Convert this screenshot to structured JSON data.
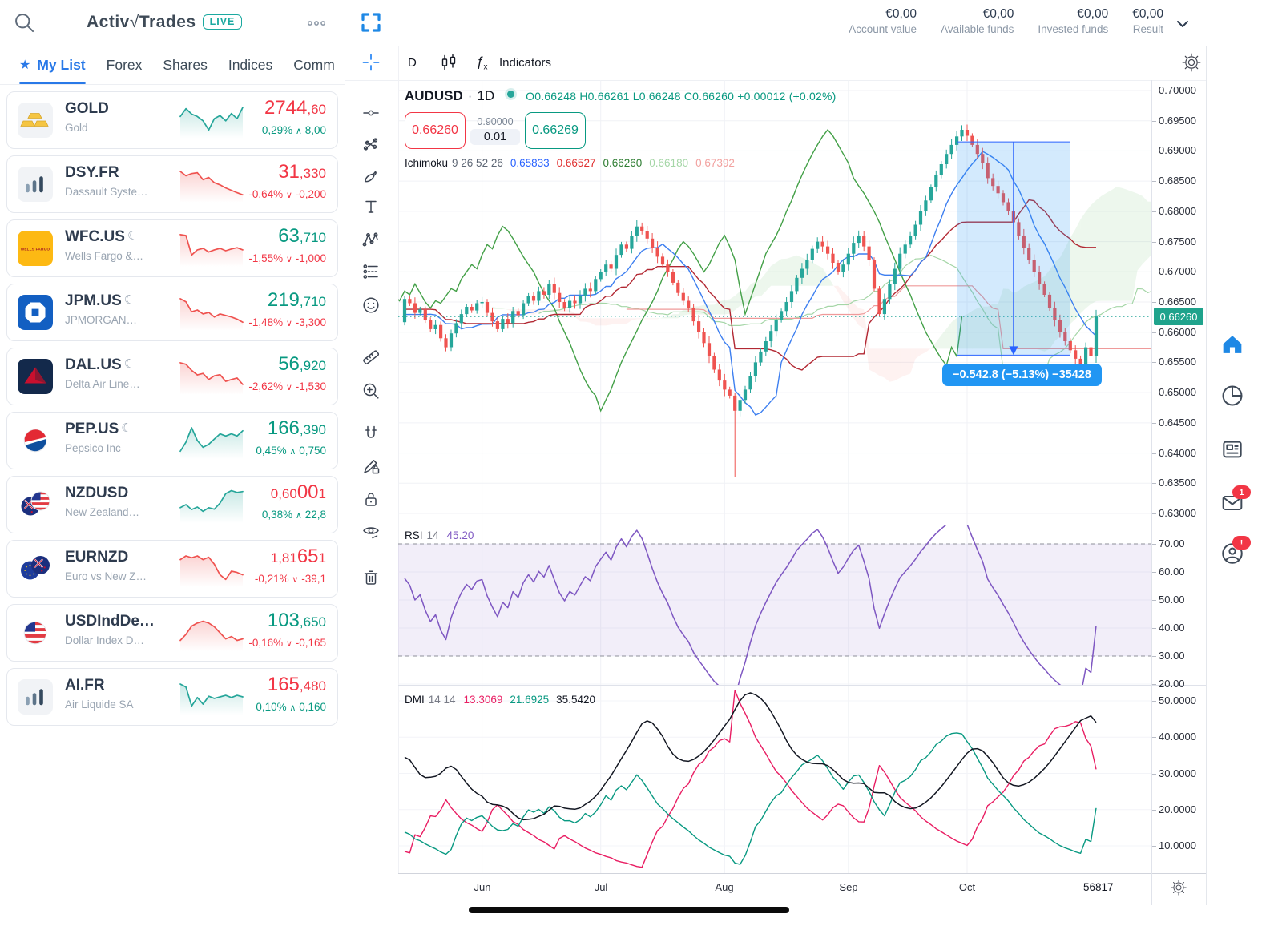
{
  "colors": {
    "up": "#089981",
    "down": "#f23645",
    "candle_up": "#26a69a",
    "candle_down": "#ef5350",
    "accent": "#1e88e5",
    "conversion": "#2962ff",
    "base_line": "#b22833",
    "lagging": "#43a047",
    "lead_a": "#a5d6a7",
    "lead_b": "#ef9a9a",
    "rsi": "#7e57c2",
    "dmi_minus": "#e91e63",
    "dmi_plus": "#089981",
    "dmi_adx": "#131722"
  },
  "watchlist": {
    "logo_activ": "Activ",
    "logo_check": "√",
    "logo_trades": "Trades",
    "live_badge": "LIVE",
    "tabs": [
      {
        "label": "My List",
        "active": true,
        "starred": true
      },
      {
        "label": "Forex"
      },
      {
        "label": "Shares"
      },
      {
        "label": "Indices"
      },
      {
        "label": "Comm"
      }
    ],
    "items": [
      {
        "symbol": "GOLD",
        "name": "Gold",
        "icon": "gold",
        "moon": false,
        "price": [
          [
            "2744",
            "lg"
          ],
          [
            ",60",
            "sm"
          ]
        ],
        "price_dir": "down",
        "change": "0,29%",
        "arrow": "up",
        "delta": "8,00",
        "change_dir": "up",
        "spark_dir": "up",
        "spark": [
          0.38,
          0.12,
          0.3,
          0.38,
          0.52,
          0.82,
          0.45,
          0.35,
          0.52,
          0.28,
          0.45,
          0.08
        ]
      },
      {
        "symbol": "DSY.FR",
        "name": "Dassault Syste…",
        "icon": "bars",
        "moon": false,
        "price": [
          [
            "31",
            "lg"
          ],
          [
            ",330",
            "sm"
          ]
        ],
        "price_dir": "down",
        "change": "-0,64%",
        "arrow": "down",
        "delta": "-0,200",
        "change_dir": "down",
        "spark_dir": "down",
        "spark": [
          0.08,
          0.22,
          0.15,
          0.12,
          0.35,
          0.28,
          0.45,
          0.52,
          0.62,
          0.7,
          0.78,
          0.85
        ]
      },
      {
        "symbol": "WFC.US",
        "name": "Wells Fargo &…",
        "icon": "wfc",
        "moon": true,
        "price": [
          [
            "63",
            "lg"
          ],
          [
            ",710",
            "sm"
          ]
        ],
        "price_dir": "up",
        "change": "-1,55%",
        "arrow": "down",
        "delta": "-1,000",
        "change_dir": "down",
        "spark_dir": "down",
        "spark": [
          0.05,
          0.08,
          0.72,
          0.55,
          0.5,
          0.62,
          0.55,
          0.5,
          0.58,
          0.52,
          0.48,
          0.55
        ]
      },
      {
        "symbol": "JPM.US",
        "name": "JPMORGAN…",
        "icon": "jpm",
        "moon": true,
        "price": [
          [
            "219",
            "lg"
          ],
          [
            ",710",
            "sm"
          ]
        ],
        "price_dir": "up",
        "change": "-1,48%",
        "arrow": "down",
        "delta": "-3,300",
        "change_dir": "down",
        "spark_dir": "down",
        "spark": [
          0.05,
          0.15,
          0.48,
          0.42,
          0.55,
          0.5,
          0.65,
          0.55,
          0.6,
          0.65,
          0.72,
          0.82
        ]
      },
      {
        "symbol": "DAL.US",
        "name": "Delta Air Line…",
        "icon": "dal",
        "moon": true,
        "price": [
          [
            "56",
            "lg"
          ],
          [
            ",920",
            "sm"
          ]
        ],
        "price_dir": "up",
        "change": "-2,62%",
        "arrow": "down",
        "delta": "-1,530",
        "change_dir": "down",
        "spark_dir": "down",
        "spark": [
          0.05,
          0.1,
          0.3,
          0.45,
          0.4,
          0.6,
          0.48,
          0.44,
          0.66,
          0.6,
          0.55,
          0.76
        ]
      },
      {
        "symbol": "PEP.US",
        "name": "Pepsico Inc",
        "icon": "pep",
        "moon": true,
        "price": [
          [
            "166",
            "lg"
          ],
          [
            ",390",
            "sm"
          ]
        ],
        "price_dir": "up",
        "change": "0,45%",
        "arrow": "up",
        "delta": "0,750",
        "change_dir": "up",
        "spark_dir": "up",
        "spark": [
          0.85,
          0.55,
          0.08,
          0.5,
          0.72,
          0.62,
          0.45,
          0.28,
          0.35,
          0.28,
          0.35,
          0.18
        ]
      },
      {
        "symbol": "NZDUSD",
        "name": "New Zealand…",
        "icon": "nzus",
        "moon": false,
        "price": [
          [
            "0,60",
            "sm"
          ],
          [
            "00",
            "lg"
          ],
          [
            "1",
            "sm"
          ]
        ],
        "price_dir": "down",
        "change": "0,38%",
        "arrow": "up",
        "delta": "22,8",
        "change_dir": "up",
        "spark_dir": "up",
        "spark": [
          0.6,
          0.5,
          0.66,
          0.58,
          0.72,
          0.6,
          0.65,
          0.45,
          0.14,
          0.04,
          0.1,
          0.07
        ]
      },
      {
        "symbol": "EURNZD",
        "name": "Euro vs New Z…",
        "icon": "eunz",
        "moon": false,
        "price": [
          [
            "1,81",
            "sm"
          ],
          [
            "65",
            "lg"
          ],
          [
            "1",
            "sm"
          ]
        ],
        "price_dir": "down",
        "change": "-0,21%",
        "arrow": "down",
        "delta": "-39,1",
        "change_dir": "down",
        "spark_dir": "down",
        "spark": [
          0.2,
          0.08,
          0.14,
          0.08,
          0.2,
          0.12,
          0.35,
          0.7,
          0.85,
          0.58,
          0.62,
          0.7
        ]
      },
      {
        "symbol": "USDIndDe…",
        "name": "Dollar Index D…",
        "icon": "us",
        "moon": false,
        "price": [
          [
            "103",
            "lg"
          ],
          [
            ",650",
            "sm"
          ]
        ],
        "price_dir": "up",
        "change": "-0,16%",
        "arrow": "down",
        "delta": "-0,165",
        "change_dir": "down",
        "spark_dir": "down",
        "spark": [
          0.75,
          0.55,
          0.28,
          0.18,
          0.12,
          0.18,
          0.3,
          0.5,
          0.7,
          0.62,
          0.75,
          0.7
        ]
      },
      {
        "symbol": "AI.FR",
        "name": "Air Liquide SA",
        "icon": "bars",
        "moon": false,
        "price": [
          [
            "165",
            "lg"
          ],
          [
            ",480",
            "sm"
          ]
        ],
        "price_dir": "down",
        "change": "0,10%",
        "arrow": "up",
        "delta": "0,160",
        "change_dir": "up",
        "spark_dir": "up",
        "spark": [
          0.08,
          0.18,
          0.8,
          0.52,
          0.74,
          0.48,
          0.55,
          0.5,
          0.45,
          0.52,
          0.45,
          0.5
        ]
      }
    ]
  },
  "topbar": {
    "accounts": [
      {
        "value": "€0,00",
        "label": "Account value"
      },
      {
        "value": "€0,00",
        "label": "Available funds"
      },
      {
        "value": "€0,00",
        "label": "Invested funds"
      },
      {
        "value": "€0,00",
        "label": "Result"
      }
    ]
  },
  "chart_row": {
    "timeframe": "D",
    "indicators": "Indicators"
  },
  "legend": {
    "symbol": "AUDUSD",
    "sep": "·",
    "timeframe": "1D",
    "ohlc_text": "O0.66248  H0.66261  L0.66248  C0.66260  +0.00012 (+0.02%)"
  },
  "trade": {
    "sell": "0.66260",
    "amount": "0.90000",
    "qty": "0.01",
    "buy": "0.66269"
  },
  "ichimoku_legend": {
    "title": "Ichimoku",
    "params": "9 26 52 26",
    "values": [
      {
        "v": "0.65833",
        "color": "#2962ff"
      },
      {
        "v": "0.66527",
        "color": "#e03131"
      },
      {
        "v": "0.66260",
        "color": "#2e7d32"
      },
      {
        "v": "0.66180",
        "color": "#a5d6a7"
      },
      {
        "v": "0.67392",
        "color": "#f2a2a0"
      }
    ]
  },
  "measure": {
    "label": "−0.542.8 (−5.13%) −35428"
  },
  "rsi_header": {
    "title": "RSI",
    "param": "14",
    "value": "45.20"
  },
  "dmi_header": {
    "title": "DMI",
    "params": "14 14",
    "minus": "13.3069",
    "plus": "21.6925",
    "adx": "35.5420"
  },
  "axis": {
    "last_price": "0.66260",
    "countdown": "56817"
  },
  "tool_column": [
    "trend-line",
    "pitchfork",
    "brush",
    "text",
    "xabcd-pattern",
    "position",
    "emoji",
    "ruler",
    "zoom-in",
    "magnet",
    "draw-lock",
    "lock",
    "eye",
    "trash"
  ],
  "right_rail": [
    {
      "icon": "home",
      "active": true
    },
    {
      "icon": "pie-chart"
    },
    {
      "icon": "news"
    },
    {
      "icon": "mail",
      "badge": "1"
    },
    {
      "icon": "profile",
      "badge": "!"
    }
  ],
  "chart_data": {
    "type": "candlestick",
    "symbol": "AUDUSD",
    "timeframe": "1D",
    "ohlc": {
      "o": 0.66248,
      "h": 0.66261,
      "l": 0.66248,
      "c": 0.6626,
      "change": 0.00012,
      "change_pct": 0.02
    },
    "price_ticks": [
      "0.70000",
      "0.69500",
      "0.69000",
      "0.68500",
      "0.68000",
      "0.67500",
      "0.67000",
      "0.66500",
      "0.66000",
      "0.65500",
      "0.65000",
      "0.64500",
      "0.64000",
      "0.63500",
      "0.63000"
    ],
    "price_tick_values": [
      0.7,
      0.695,
      0.69,
      0.685,
      0.68,
      0.675,
      0.67,
      0.665,
      0.66,
      0.655,
      0.65,
      0.645,
      0.64,
      0.635,
      0.63
    ],
    "months": [
      {
        "label": "Jun",
        "bar": 15
      },
      {
        "label": "Jul",
        "bar": 38
      },
      {
        "label": "Aug",
        "bar": 62
      },
      {
        "label": "Sep",
        "bar": 86
      },
      {
        "label": "Oct",
        "bar": 109
      }
    ],
    "closes": [
      0.6655,
      0.6648,
      0.6632,
      0.6638,
      0.662,
      0.6605,
      0.6612,
      0.659,
      0.6575,
      0.6598,
      0.6615,
      0.663,
      0.6642,
      0.6636,
      0.6648,
      0.665,
      0.6632,
      0.6618,
      0.6605,
      0.6622,
      0.6615,
      0.6635,
      0.6628,
      0.6648,
      0.666,
      0.6652,
      0.6668,
      0.6662,
      0.668,
      0.6665,
      0.665,
      0.664,
      0.6652,
      0.6648,
      0.666,
      0.6672,
      0.6668,
      0.6688,
      0.67,
      0.6712,
      0.6705,
      0.6728,
      0.6745,
      0.6738,
      0.676,
      0.6775,
      0.6768,
      0.6755,
      0.674,
      0.6725,
      0.6712,
      0.67,
      0.6682,
      0.6665,
      0.6652,
      0.664,
      0.6618,
      0.66,
      0.6582,
      0.656,
      0.6538,
      0.652,
      0.6505,
      0.6495,
      0.647,
      0.6488,
      0.6505,
      0.6528,
      0.655,
      0.6568,
      0.6585,
      0.6602,
      0.662,
      0.6635,
      0.665,
      0.6668,
      0.669,
      0.6705,
      0.672,
      0.6738,
      0.675,
      0.6742,
      0.673,
      0.6715,
      0.67,
      0.6712,
      0.673,
      0.6748,
      0.676,
      0.6742,
      0.672,
      0.6672,
      0.663,
      0.6655,
      0.668,
      0.6705,
      0.673,
      0.6745,
      0.676,
      0.6778,
      0.68,
      0.6818,
      0.684,
      0.686,
      0.6878,
      0.6895,
      0.691,
      0.6924,
      0.6935,
      0.6925,
      0.691,
      0.6895,
      0.688,
      0.6855,
      0.6842,
      0.683,
      0.6815,
      0.68,
      0.6782,
      0.676,
      0.674,
      0.672,
      0.67,
      0.668,
      0.6662,
      0.664,
      0.662,
      0.66,
      0.6585,
      0.657,
      0.6556,
      0.6545,
      0.6575,
      0.656,
      0.6626
    ],
    "wick_overrides": [
      {
        "bar": 64,
        "low": 0.636
      }
    ],
    "last_price": 0.6626,
    "ichimoku_params": {
      "conversion": 9,
      "base": 26,
      "span_b": 52,
      "displacement": 26
    },
    "rsi": {
      "period": 14,
      "last": 45.2,
      "band": [
        30,
        70
      ],
      "ticks": [
        "70.00",
        "60.00",
        "50.00",
        "40.00",
        "30.00",
        "20.00"
      ],
      "tick_values": [
        70,
        60,
        50,
        40,
        30,
        20
      ]
    },
    "dmi": {
      "period": 14,
      "last_minus_di": 13.3069,
      "last_plus_di": 21.6925,
      "last_adx": 35.542,
      "ticks": [
        "50.0000",
        "40.0000",
        "30.0000",
        "20.0000",
        "10.0000"
      ],
      "tick_values": [
        50,
        40,
        30,
        20,
        10
      ]
    },
    "measure_rect": {
      "bar_start": 107,
      "bar_end": 129,
      "price_top": 0.6915,
      "price_bottom": 0.6562
    }
  }
}
